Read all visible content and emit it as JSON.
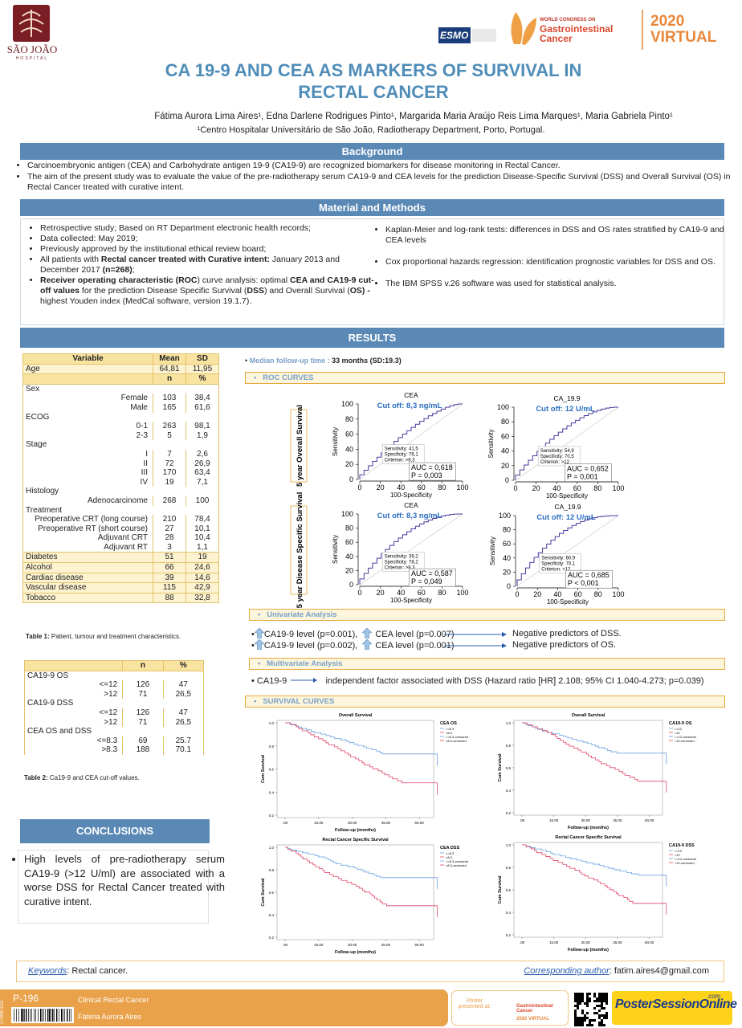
{
  "header": {
    "logo_name": "SÃO JOÃO",
    "logo_sub": "HOSPITAL",
    "esmo": "ESMO",
    "congress_pre": "WORLD CONGRESS ON",
    "congress_name": "Gastrointestinal Cancer",
    "year": "2020",
    "virtual": "VIRTUAL",
    "title": "CA 19-9 AND CEA AS MARKERS OF SURVIVAL IN RECTAL CANCER",
    "authors": "Fátima Aurora Lima Aires¹, Edna Darlene Rodrigues Pinto¹, Margarida Maria Araújo Reis Lima Marques¹, Maria Gabriela Pinto¹",
    "affiliation": "¹Centro Hospitalar Universitário de São João, Radiotherapy Department, Porto, Portugal."
  },
  "background": {
    "heading": "Background",
    "items": [
      "Carcinoembryonic antigen (CEA) and Carbohydrate antigen 19-9 (CA19-9) are recognized biomarkers for disease monitoring in Rectal Cancer.",
      "The aim of the present study was to evaluate the value of the pre-radiotherapy serum CA19-9 and CEA levels for the prediction Disease-Specific Survival (DSS) and Overall Survival (OS) in Rectal Cancer treated with curative intent."
    ]
  },
  "methods": {
    "heading": "Material and Methods",
    "left": [
      [
        {
          "text": "Retrospective study; Based on RT Department  electronic health records;",
          "bold": false
        }
      ],
      [
        {
          "text": "Data collected: May 2019;",
          "bold": false
        }
      ],
      [
        {
          "text": "Previously approved by the institutional ethical review board;",
          "bold": false
        }
      ],
      [
        {
          "text": "All patients with ",
          "bold": false
        },
        {
          "text": "Rectal cancer treated with Curative intent:",
          "bold": true
        },
        {
          "text": " January 2013 and December 2017 ",
          "bold": false
        },
        {
          "text": "(n=268)",
          "bold": true
        },
        {
          "text": ";",
          "bold": false
        }
      ],
      [
        {
          "text": "Receiver operating characteristic (ROC",
          "bold": true
        },
        {
          "text": ") curve analysis: optimal ",
          "bold": false
        },
        {
          "text": "CEA  and CA19-9 cut-off values",
          "bold": true
        },
        {
          "text": " for the prediction  Disease Specific Survival (",
          "bold": false
        },
        {
          "text": "DSS",
          "bold": true
        },
        {
          "text": ") and Overall Survival (",
          "bold": false
        },
        {
          "text": "OS) -",
          "bold": true
        },
        {
          "text": " highest Youden index  (MedCal software, version 19.1.7).",
          "bold": false
        }
      ]
    ],
    "right": [
      [
        {
          "text": "Kaplan-Meier and log-rank tests: differences in DSS and OS rates stratified by CA19-9 and CEA levels",
          "bold": false
        }
      ],
      [
        {
          "text": "Cox proportional hazards regression:  identification prognostic variables for DSS and OS.",
          "bold": false
        }
      ],
      [
        {
          "text": "The IBM SPSS v.26 software was used for statistical analysis.",
          "bold": false
        }
      ]
    ]
  },
  "results": {
    "heading": "RESULTS",
    "followup_label": "Median follow-up time :",
    "followup_value": "33 months (SD:19.3)",
    "table1": {
      "rows": [
        {
          "style": "head",
          "label": "Variable",
          "values": [
            "Mean",
            "SD"
          ]
        },
        {
          "style": "plain",
          "label": "Age",
          "values": [
            "64,81",
            "11,95"
          ]
        },
        {
          "style": "subhead",
          "values": [
            "n",
            "%"
          ]
        },
        {
          "style": "group",
          "label": "Sex"
        },
        {
          "style": "sub",
          "label": "Female",
          "values": [
            "103",
            "38,4"
          ]
        },
        {
          "style": "sub",
          "label": "Male",
          "values": [
            "165",
            "61,6"
          ]
        },
        {
          "style": "group",
          "label": "ECOG"
        },
        {
          "style": "sub",
          "label": "0-1",
          "values": [
            "263",
            "98,1"
          ]
        },
        {
          "style": "sub",
          "label": "2-3",
          "values": [
            "5",
            "1,9"
          ]
        },
        {
          "style": "group",
          "label": "Stage"
        },
        {
          "style": "sub",
          "label": "I",
          "values": [
            "7",
            "2,6"
          ]
        },
        {
          "style": "sub",
          "label": "II",
          "values": [
            "72",
            "26,9"
          ]
        },
        {
          "style": "sub",
          "label": "III",
          "values": [
            "170",
            "63,4"
          ]
        },
        {
          "style": "sub",
          "label": "IV",
          "values": [
            "19",
            "7,1"
          ]
        },
        {
          "style": "group",
          "label": "Histology"
        },
        {
          "style": "sub",
          "label": "Adenocarcinome",
          "values": [
            "268",
            "100"
          ]
        },
        {
          "style": "group",
          "label": "Treatment"
        },
        {
          "style": "sub",
          "label": "Preoperative CRT (long course)",
          "values": [
            "210",
            "78,4"
          ]
        },
        {
          "style": "sub",
          "label": "Preoperative RT (short course)",
          "values": [
            "27",
            "10,1"
          ]
        },
        {
          "style": "sub",
          "label": "Adjuvant CRT",
          "values": [
            "28",
            "10,4"
          ]
        },
        {
          "style": "sub",
          "label": "Adjuvant RT",
          "values": [
            "3",
            "1,1"
          ]
        },
        {
          "style": "plain",
          "label": "Diabetes",
          "values": [
            "51",
            "19"
          ]
        },
        {
          "style": "plain",
          "label": "Alcohol",
          "values": [
            "66",
            "24,6"
          ]
        },
        {
          "style": "plain",
          "label": "Cardiac disease",
          "values": [
            "39",
            "14,6"
          ]
        },
        {
          "style": "plain",
          "label": "Vascular disease",
          "values": [
            "115",
            "42,9"
          ]
        },
        {
          "style": "plain",
          "label": "Tobacco",
          "values": [
            "88",
            "32,8"
          ]
        }
      ],
      "caption_bold": "Table 1:",
      "caption": "  Patient, tumour and treatment characteristics."
    },
    "table2": {
      "rows": [
        {
          "style": "subhead",
          "values": [
            "n",
            "%"
          ]
        },
        {
          "style": "group",
          "label": "CA19-9 OS"
        },
        {
          "style": "sub",
          "label": "<=12",
          "values": [
            "126",
            "47"
          ]
        },
        {
          "style": "sub",
          "label": ">12",
          "values": [
            "71",
            "26,5"
          ]
        },
        {
          "style": "group",
          "label": "CA19-9 DSS"
        },
        {
          "style": "sub",
          "label": "<=12",
          "values": [
            "126",
            "47"
          ]
        },
        {
          "style": "sub",
          "label": ">12",
          "values": [
            "71",
            "26,5"
          ]
        },
        {
          "style": "group",
          "label": "CEA OS and DSS"
        },
        {
          "style": "sub",
          "label": "<=8.3",
          "values": [
            "69",
            "25.7"
          ]
        },
        {
          "style": "sub",
          "label": ">8.3",
          "values": [
            "188",
            "70.1"
          ]
        }
      ],
      "caption_bold": "Table 2:",
      "caption": " Ca19-9 and CEA cut-off values."
    },
    "roc": {
      "heading": "ROC CURVES",
      "ticks": [
        0,
        20,
        40,
        60,
        80,
        100
      ],
      "lim": [
        0,
        100
      ],
      "y_label": "Sensitivity",
      "x_label": "100-Specificity",
      "side_labels": [
        "5 year   Overall  Survival",
        "5 year Disease Specific Survival"
      ],
      "charts": [
        {
          "title": "CEA",
          "cutoff": "Cut off: 8,3 ng/mL",
          "stats": [
            "Sensitivity: 41,5",
            "Specificity: 76,1",
            "Criterion: >8,3"
          ],
          "auc": "AUC = 0,618",
          "p": "P = 0,003"
        },
        {
          "title": "CA_19.9",
          "cutoff": "Cut off: 12 U/mL",
          "stats": [
            "Sensitivity: 54,9",
            "Specificity: 70,5",
            "Criterion: >12"
          ],
          "auc": "AUC = 0,652",
          "p": "P = 0,001"
        },
        {
          "title": "CEA",
          "cutoff": "Cut off: 8,3 ng/mL",
          "stats": [
            "Sensitivity: 39,2",
            "Specificity: 78,2",
            "Criterion: >8,3"
          ],
          "auc": "AUC = 0,587",
          "p": "P = 0,049"
        },
        {
          "title": "CA_19.9",
          "cutoff": "Cut off: 12 U/mL",
          "stats": [
            "Sensitivity: 60,9",
            "Specificity: 70,1",
            "Criterion: >12"
          ],
          "auc": "AUC = 0,685",
          "p": "P < 0,001"
        }
      ]
    },
    "univariate": {
      "heading": "Univariate Analysis",
      "lines": [
        {
          "a": "CA19-9 level (p=0.001),",
          "b": "CEA level (p=0.007)",
          "c": "Negative predictors of DSS."
        },
        {
          "a": "CA19-9 level (p=0.002),",
          "b": "CEA level (p=0.001)",
          "c": "Negative predictors of OS."
        }
      ]
    },
    "multivariate": {
      "heading": "Multivariate Analysis",
      "a": "CA19-9",
      "b": "independent factor associated with DSS (Hazard ratio [HR] 2.108; 95% CI 1.040-4.273; p=0.039)"
    },
    "survival": {
      "heading": "SURVIVAL CURVES",
      "y_label": "Cum Survival",
      "x_label": "Follow-up (months)",
      "ylim": [
        0.2,
        1.0
      ],
      "xlim": [
        0,
        70
      ],
      "yticks": [
        {
          "value": 1.0,
          "label": "1.0"
        },
        {
          "value": 0.8,
          "label": "0.8"
        },
        {
          "value": 0.6,
          "label": "0.6"
        },
        {
          "value": 0.4,
          "label": "0.4"
        },
        {
          "value": 0.2,
          "label": "0.2"
        }
      ],
      "xticks": [
        {
          "value": 0,
          "label": ".00"
        },
        {
          "value": 15,
          "label": "15.00"
        },
        {
          "value": 30,
          "label": "30.00"
        },
        {
          "value": 45,
          "label": "45.00"
        },
        {
          "value": 60,
          "label": "60.00"
        }
      ],
      "charts": [
        {
          "title": "Overall Survival",
          "legend_title": "CEA OS",
          "legend": [
            "<=8.3",
            ">8.3",
            "<=8.3-censored",
            ">8.3-censored"
          ]
        },
        {
          "title": "Overall Survival",
          "legend_title": "CA19-9 OS",
          "legend": [
            "<=12",
            ">12",
            "<=12-censored",
            ">12-censored"
          ]
        },
        {
          "title": "Rectal Cancer Specific Survival",
          "legend_title": "CEA DSS",
          "legend": [
            "<=8.3",
            ">8.3",
            "<=8.3-censored",
            ">8.3-censored"
          ]
        },
        {
          "title": "Rectal Cancer Specific Survival",
          "legend_title": "CA19-9 DSS",
          "legend": [
            "<=12",
            ">12",
            "<=12-censored",
            ">12-censored"
          ]
        }
      ]
    }
  },
  "conclusions": {
    "heading": "CONCLUSIONS",
    "text": "High levels of pre-radiotherapy serum CA19-9 (>12 U/ml) are associated with a worse DSS for Rectal Cancer treated with curative intent."
  },
  "footer": {
    "keywords_label": "Keywords",
    "keywords": ": Rectal cancer.",
    "corresponding_label": "Corresponding author",
    "corresponding": ": fatim.aires4@gmail.com",
    "poster_id": "P-196",
    "code": "273MCGIC",
    "category": "Clinical Rectal Cancer",
    "author": "Fátima Aurora Aires",
    "presented": "Poster presented at:",
    "brand": "PosterSessionOnline",
    "brand_tld": ".com"
  }
}
